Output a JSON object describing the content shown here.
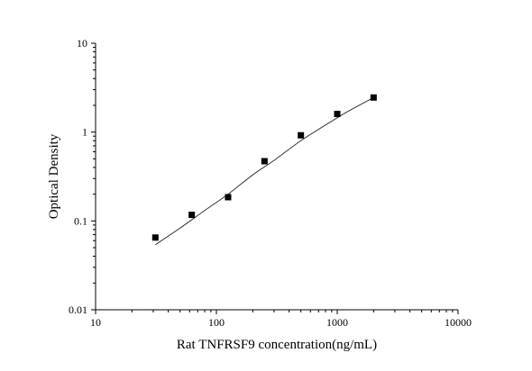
{
  "chart_data": {
    "type": "scatter",
    "xlabel": "Rat TNFRSF9 concentration(ng/mL)",
    "ylabel": "Optical Density",
    "x_scale": "log",
    "y_scale": "log",
    "xlim": [
      10,
      10000
    ],
    "ylim": [
      0.01,
      10
    ],
    "x_ticks": [
      "10",
      "100",
      "1000",
      "10000"
    ],
    "y_ticks": [
      "0.01",
      "0.1",
      "1",
      "10"
    ],
    "grid": false,
    "legend": "none",
    "series": [
      {
        "kind": "points",
        "x": [
          31.25,
          62.5,
          125,
          250,
          500,
          1000,
          2000
        ],
        "y": [
          0.065,
          0.117,
          0.185,
          0.47,
          0.92,
          1.6,
          2.45
        ]
      },
      {
        "kind": "fit-curve",
        "x": [
          31.25,
          50,
          80,
          125,
          200,
          300,
          500,
          800,
          1200,
          1600,
          2000
        ],
        "y": [
          0.054,
          0.083,
          0.131,
          0.2,
          0.33,
          0.48,
          0.8,
          1.2,
          1.68,
          2.08,
          2.45
        ]
      }
    ],
    "colors": {
      "points": "#000000",
      "curve": "#333333",
      "axis": "#000000"
    }
  }
}
